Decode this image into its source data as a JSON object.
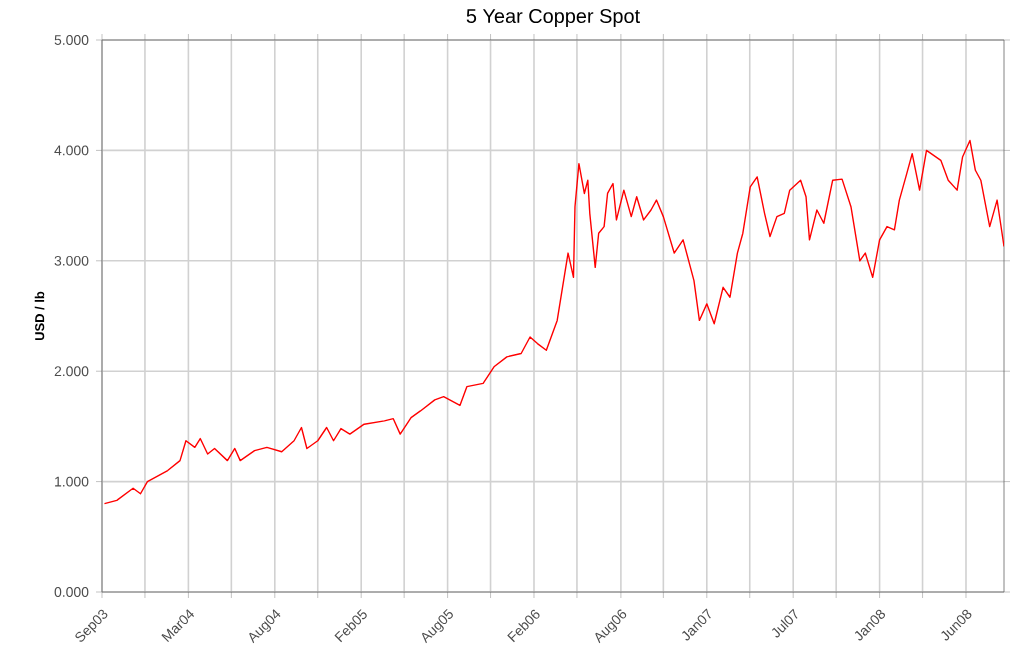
{
  "chart_data": {
    "type": "line",
    "title": "5 Year Copper Spot",
    "ylabel": "USD / lb",
    "xlim": [
      "2003-09-15",
      "2008-09-15"
    ],
    "ylim": [
      0,
      5
    ],
    "xticks": [
      {
        "value": "2003-09-15",
        "label": "Sep03"
      },
      {
        "value": "2003-12-11",
        "label": null
      },
      {
        "value": "2004-03-08",
        "label": "Mar04"
      },
      {
        "value": "2004-06-03",
        "label": null
      },
      {
        "value": "2004-08-30",
        "label": "Aug04"
      },
      {
        "value": "2004-11-25",
        "label": null
      },
      {
        "value": "2005-02-21",
        "label": "Feb05"
      },
      {
        "value": "2005-05-19",
        "label": null
      },
      {
        "value": "2005-08-15",
        "label": "Aug05"
      },
      {
        "value": "2005-11-10",
        "label": null
      },
      {
        "value": "2006-02-06",
        "label": "Feb06"
      },
      {
        "value": "2006-05-04",
        "label": null
      },
      {
        "value": "2006-08-01",
        "label": "Aug06"
      },
      {
        "value": "2006-10-26",
        "label": null
      },
      {
        "value": "2007-01-22",
        "label": "Jan07"
      },
      {
        "value": "2007-04-19",
        "label": null
      },
      {
        "value": "2007-07-16",
        "label": "Jul07"
      },
      {
        "value": "2007-10-11",
        "label": null
      },
      {
        "value": "2008-01-07",
        "label": "Jan08"
      },
      {
        "value": "2008-04-03",
        "label": null
      },
      {
        "value": "2008-06-30",
        "label": "Jun08"
      }
    ],
    "yticks": [
      {
        "value": 0,
        "label": "0.000"
      },
      {
        "value": 1,
        "label": "1.000"
      },
      {
        "value": 2,
        "label": "2.000"
      },
      {
        "value": 3,
        "label": "3.000"
      },
      {
        "value": 4,
        "label": "4.000"
      },
      {
        "value": 5,
        "label": "5.000"
      }
    ],
    "grid": true,
    "marker": "none",
    "line_style": "solid",
    "series": [
      {
        "color": "#ff0000",
        "x": [
          "2003-09-20",
          "2003-10-15",
          "2003-11-17",
          "2003-12-02",
          "2003-12-16",
          "2004-01-26",
          "2004-02-20",
          "2004-03-03",
          "2004-03-21",
          "2004-04-01",
          "2004-04-16",
          "2004-04-30",
          "2004-05-26",
          "2004-06-10",
          "2004-06-21",
          "2004-07-20",
          "2004-08-14",
          "2004-09-13",
          "2004-10-08",
          "2004-10-23",
          "2004-11-03",
          "2004-11-25",
          "2004-12-13",
          "2004-12-27",
          "2005-01-11",
          "2005-01-29",
          "2005-02-27",
          "2005-04-09",
          "2005-04-27",
          "2005-05-11",
          "2005-06-02",
          "2005-06-21",
          "2005-07-20",
          "2005-08-07",
          "2005-09-09",
          "2005-09-23",
          "2005-10-26",
          "2005-11-17",
          "2005-12-13",
          "2006-01-11",
          "2006-01-29",
          "2006-02-13",
          "2006-03-03",
          "2006-03-25",
          "2006-04-16",
          "2006-04-27",
          "2006-04-30",
          "2006-05-08",
          "2006-05-19",
          "2006-05-26",
          "2006-05-30",
          "2006-06-10",
          "2006-06-17",
          "2006-06-28",
          "2006-07-05",
          "2006-07-16",
          "2006-07-23",
          "2006-08-07",
          "2006-08-22",
          "2006-09-02",
          "2006-09-16",
          "2006-10-01",
          "2006-10-12",
          "2006-10-26",
          "2006-11-17",
          "2006-12-05",
          "2006-12-27",
          "2007-01-07",
          "2007-01-22",
          "2007-02-06",
          "2007-02-24",
          "2007-03-10",
          "2007-03-25",
          "2007-04-05",
          "2007-04-20",
          "2007-05-04",
          "2007-05-19",
          "2007-05-30",
          "2007-06-13",
          "2007-06-28",
          "2007-07-09",
          "2007-07-31",
          "2007-08-11",
          "2007-08-18",
          "2007-09-02",
          "2007-09-16",
          "2007-10-04",
          "2007-10-23",
          "2007-11-10",
          "2007-11-28",
          "2007-12-09",
          "2007-12-24",
          "2008-01-07",
          "2008-01-22",
          "2008-02-06",
          "2008-02-16",
          "2008-03-02",
          "2008-03-13",
          "2008-03-28",
          "2008-04-11",
          "2008-05-10",
          "2008-05-25",
          "2008-06-12",
          "2008-06-23",
          "2008-07-08",
          "2008-07-19",
          "2008-07-30",
          "2008-08-17",
          "2008-09-01",
          "2008-09-08",
          "2008-09-15"
        ],
        "values": [
          0.8,
          0.83,
          0.94,
          0.89,
          1.0,
          1.1,
          1.19,
          1.37,
          1.31,
          1.39,
          1.25,
          1.3,
          1.19,
          1.3,
          1.19,
          1.28,
          1.31,
          1.27,
          1.37,
          1.49,
          1.3,
          1.37,
          1.49,
          1.37,
          1.48,
          1.43,
          1.52,
          1.55,
          1.57,
          1.43,
          1.58,
          1.64,
          1.74,
          1.77,
          1.69,
          1.86,
          1.89,
          2.04,
          2.13,
          2.16,
          2.31,
          2.25,
          2.19,
          2.46,
          3.07,
          2.85,
          3.49,
          3.88,
          3.61,
          3.73,
          3.43,
          2.94,
          3.25,
          3.31,
          3.61,
          3.7,
          3.37,
          3.64,
          3.4,
          3.58,
          3.37,
          3.46,
          3.55,
          3.4,
          3.07,
          3.19,
          2.82,
          2.46,
          2.61,
          2.43,
          2.76,
          2.67,
          3.07,
          3.25,
          3.67,
          3.76,
          3.43,
          3.22,
          3.4,
          3.43,
          3.64,
          3.73,
          3.58,
          3.19,
          3.46,
          3.34,
          3.73,
          3.74,
          3.49,
          3.0,
          3.07,
          2.85,
          3.19,
          3.31,
          3.28,
          3.55,
          3.79,
          3.97,
          3.64,
          4.0,
          3.91,
          3.73,
          3.64,
          3.94,
          4.09,
          3.82,
          3.73,
          3.31,
          3.55,
          3.34,
          3.13
        ]
      }
    ]
  }
}
